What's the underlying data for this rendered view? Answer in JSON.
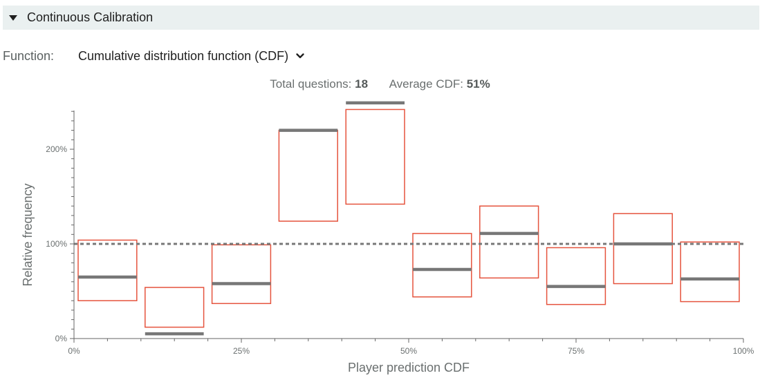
{
  "section": {
    "title": "Continuous Calibration"
  },
  "function": {
    "label": "Function:",
    "value": "Cumulative distribution function (CDF)"
  },
  "summary": {
    "total_label": "Total questions:",
    "total_value": "18",
    "average_label": "Average CDF:",
    "average_value": "51%"
  },
  "colors": {
    "box": "#e5533d",
    "bar": "#777777",
    "axis": "#666666",
    "reference": "#777777"
  },
  "chart_data": {
    "type": "bar",
    "xlabel": "Player prediction CDF",
    "ylabel": "Relative frequency",
    "xlim": [
      0,
      1
    ],
    "ylim": [
      0,
      2.4
    ],
    "x_ticks": [
      {
        "value": 0,
        "label": "0%"
      },
      {
        "value": 0.25,
        "label": "25%"
      },
      {
        "value": 0.5,
        "label": "50%"
      },
      {
        "value": 0.75,
        "label": "75%"
      },
      {
        "value": 1,
        "label": "100%"
      }
    ],
    "y_ticks": [
      {
        "value": 0,
        "label": "0%"
      },
      {
        "value": 1,
        "label": "100%"
      },
      {
        "value": 2,
        "label": "200%"
      }
    ],
    "reference_line": 1.0,
    "bins": [
      {
        "x0": 0.0,
        "x1": 0.1,
        "value": 0.65,
        "low": 0.4,
        "high": 1.04
      },
      {
        "x0": 0.1,
        "x1": 0.2,
        "value": 0.05,
        "low": 0.12,
        "high": 0.54
      },
      {
        "x0": 0.2,
        "x1": 0.3,
        "value": 0.58,
        "low": 0.37,
        "high": 0.99
      },
      {
        "x0": 0.3,
        "x1": 0.4,
        "value": 2.2,
        "low": 1.24,
        "high": 2.2
      },
      {
        "x0": 0.4,
        "x1": 0.5,
        "value": 2.49,
        "low": 1.42,
        "high": 2.42
      },
      {
        "x0": 0.5,
        "x1": 0.6,
        "value": 0.73,
        "low": 0.44,
        "high": 1.11
      },
      {
        "x0": 0.6,
        "x1": 0.7,
        "value": 1.11,
        "low": 0.64,
        "high": 1.4
      },
      {
        "x0": 0.7,
        "x1": 0.8,
        "value": 0.55,
        "low": 0.36,
        "high": 0.96
      },
      {
        "x0": 0.8,
        "x1": 0.9,
        "value": 1.0,
        "low": 0.58,
        "high": 1.32
      },
      {
        "x0": 0.9,
        "x1": 1.0,
        "value": 0.63,
        "low": 0.39,
        "high": 1.02
      }
    ]
  }
}
